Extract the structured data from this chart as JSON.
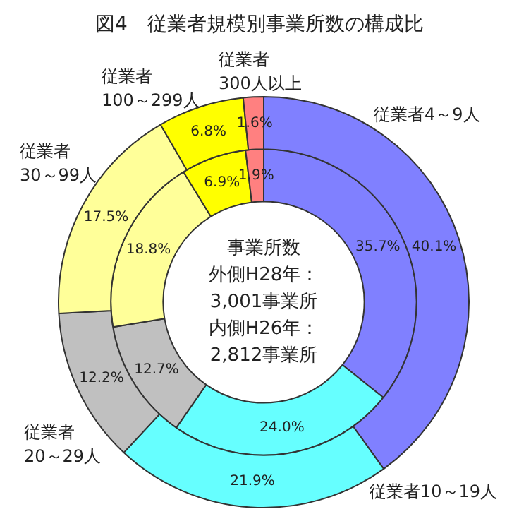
{
  "chart_data": {
    "type": "donut",
    "title": "図4　従業者規模別事業所数の構成比",
    "categories": [
      "従業者4～9人",
      "従業者10～19人",
      "従業者20～29人",
      "従業者30～99人",
      "従業者100～299人",
      "従業者300人以上"
    ],
    "series": [
      {
        "values": [
          40.1,
          21.9,
          12.2,
          17.5,
          6.8,
          1.6
        ],
        "colors": [
          "#8080ff",
          "#66ffff",
          "#c0c0c0",
          "#ffff99",
          "#ffff00",
          "#ff8080"
        ],
        "value_labels": [
          "40.1%",
          "21.9%",
          "12.2%",
          "17.5%",
          "6.8%",
          "1.6%"
        ]
      },
      {
        "values": [
          35.7,
          24.0,
          12.7,
          18.8,
          6.9,
          1.9
        ],
        "colors": [
          "#8080ff",
          "#66ffff",
          "#c0c0c0",
          "#ffff99",
          "#ffff00",
          "#ff8080"
        ],
        "value_labels": [
          "35.7%",
          "24.0%",
          "12.7%",
          "18.8%",
          "6.9%",
          "1.9%"
        ]
      }
    ],
    "annotations": [
      "事業所数",
      "外側H28年：",
      "3,001事業所",
      "内側H26年：",
      "2,812事業所"
    ]
  }
}
